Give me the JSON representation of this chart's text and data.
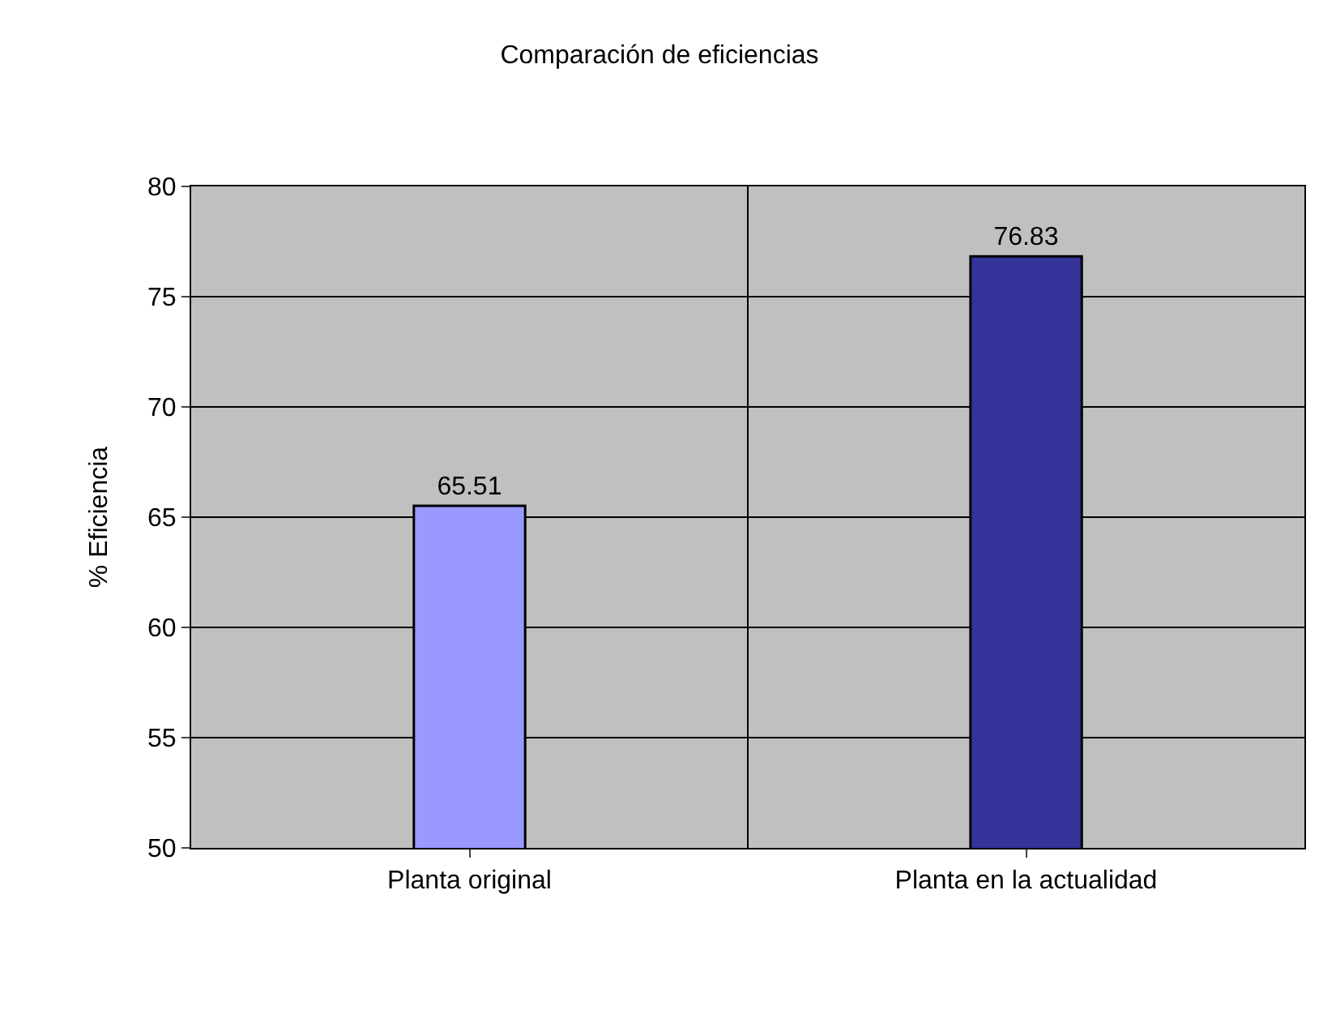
{
  "chart_data": {
    "type": "bar",
    "title": "Comparación de eficiencias",
    "ylabel": "% Eficiencia",
    "categories": [
      "Planta original",
      "Planta en la actualidad"
    ],
    "values": [
      65.51,
      76.83
    ],
    "colors": [
      "#9999ff",
      "#333399"
    ],
    "ylim": [
      50,
      80
    ],
    "yticks": [
      50,
      55,
      60,
      65,
      70,
      75,
      80
    ],
    "grid": true,
    "data_labels": true
  }
}
